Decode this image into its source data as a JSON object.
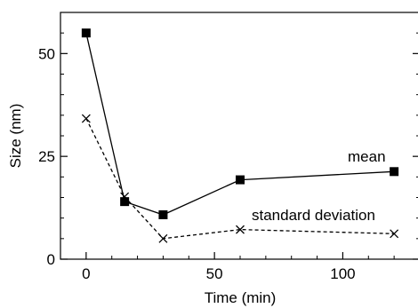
{
  "chart_data": {
    "type": "line",
    "title": "",
    "xlabel": "Time (min)",
    "ylabel": "Size (nm)",
    "xlim": [
      -10,
      130
    ],
    "ylim": [
      0,
      60
    ],
    "xticks": [
      0,
      50,
      100
    ],
    "yticks": [
      0,
      25,
      50
    ],
    "x_minor_step": 10,
    "y_minor_step": 5,
    "grid": false,
    "legend": "none",
    "x": [
      0,
      15,
      30,
      60,
      120
    ],
    "series": [
      {
        "name": "mean",
        "values": [
          55,
          14,
          10.8,
          19.3,
          21.3
        ],
        "marker": "square",
        "line": "solid",
        "color": "#000000"
      },
      {
        "name": "standard deviation",
        "values": [
          34.2,
          15.2,
          5,
          7.2,
          6.2
        ],
        "marker": "cross",
        "line": "dashed",
        "color": "#000000"
      }
    ],
    "annotations": [
      "mean",
      "standard deviation"
    ]
  }
}
